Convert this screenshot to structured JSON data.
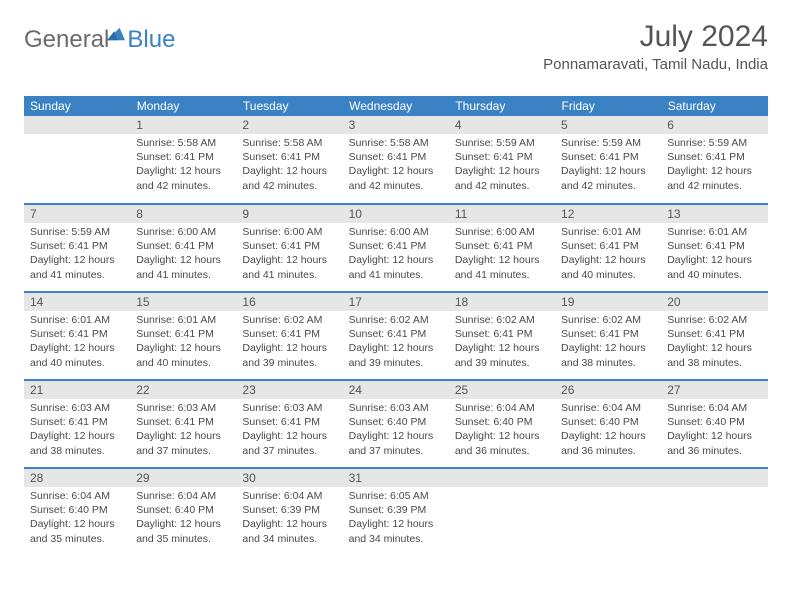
{
  "logo": {
    "text1": "General",
    "text2": "Blue"
  },
  "header": {
    "month_title": "July 2024",
    "location": "Ponnamaravati, Tamil Nadu, India"
  },
  "colors": {
    "header_bg": "#3b82c4",
    "header_fg": "#ffffff",
    "daynum_bg": "#e6e6e6",
    "row_border": "#3b82c4",
    "text": "#4a4a4a",
    "logo_gray": "#6b6b6b",
    "logo_blue": "#3b82c4"
  },
  "weekdays": [
    "Sunday",
    "Monday",
    "Tuesday",
    "Wednesday",
    "Thursday",
    "Friday",
    "Saturday"
  ],
  "labels": {
    "sunrise": "Sunrise:",
    "sunset": "Sunset:",
    "daylight": "Daylight:"
  },
  "first_day_index": 1,
  "days": [
    {
      "n": 1,
      "sunrise": "5:58 AM",
      "sunset": "6:41 PM",
      "daylight": "12 hours and 42 minutes."
    },
    {
      "n": 2,
      "sunrise": "5:58 AM",
      "sunset": "6:41 PM",
      "daylight": "12 hours and 42 minutes."
    },
    {
      "n": 3,
      "sunrise": "5:58 AM",
      "sunset": "6:41 PM",
      "daylight": "12 hours and 42 minutes."
    },
    {
      "n": 4,
      "sunrise": "5:59 AM",
      "sunset": "6:41 PM",
      "daylight": "12 hours and 42 minutes."
    },
    {
      "n": 5,
      "sunrise": "5:59 AM",
      "sunset": "6:41 PM",
      "daylight": "12 hours and 42 minutes."
    },
    {
      "n": 6,
      "sunrise": "5:59 AM",
      "sunset": "6:41 PM",
      "daylight": "12 hours and 42 minutes."
    },
    {
      "n": 7,
      "sunrise": "5:59 AM",
      "sunset": "6:41 PM",
      "daylight": "12 hours and 41 minutes."
    },
    {
      "n": 8,
      "sunrise": "6:00 AM",
      "sunset": "6:41 PM",
      "daylight": "12 hours and 41 minutes."
    },
    {
      "n": 9,
      "sunrise": "6:00 AM",
      "sunset": "6:41 PM",
      "daylight": "12 hours and 41 minutes."
    },
    {
      "n": 10,
      "sunrise": "6:00 AM",
      "sunset": "6:41 PM",
      "daylight": "12 hours and 41 minutes."
    },
    {
      "n": 11,
      "sunrise": "6:00 AM",
      "sunset": "6:41 PM",
      "daylight": "12 hours and 41 minutes."
    },
    {
      "n": 12,
      "sunrise": "6:01 AM",
      "sunset": "6:41 PM",
      "daylight": "12 hours and 40 minutes."
    },
    {
      "n": 13,
      "sunrise": "6:01 AM",
      "sunset": "6:41 PM",
      "daylight": "12 hours and 40 minutes."
    },
    {
      "n": 14,
      "sunrise": "6:01 AM",
      "sunset": "6:41 PM",
      "daylight": "12 hours and 40 minutes."
    },
    {
      "n": 15,
      "sunrise": "6:01 AM",
      "sunset": "6:41 PM",
      "daylight": "12 hours and 40 minutes."
    },
    {
      "n": 16,
      "sunrise": "6:02 AM",
      "sunset": "6:41 PM",
      "daylight": "12 hours and 39 minutes."
    },
    {
      "n": 17,
      "sunrise": "6:02 AM",
      "sunset": "6:41 PM",
      "daylight": "12 hours and 39 minutes."
    },
    {
      "n": 18,
      "sunrise": "6:02 AM",
      "sunset": "6:41 PM",
      "daylight": "12 hours and 39 minutes."
    },
    {
      "n": 19,
      "sunrise": "6:02 AM",
      "sunset": "6:41 PM",
      "daylight": "12 hours and 38 minutes."
    },
    {
      "n": 20,
      "sunrise": "6:02 AM",
      "sunset": "6:41 PM",
      "daylight": "12 hours and 38 minutes."
    },
    {
      "n": 21,
      "sunrise": "6:03 AM",
      "sunset": "6:41 PM",
      "daylight": "12 hours and 38 minutes."
    },
    {
      "n": 22,
      "sunrise": "6:03 AM",
      "sunset": "6:41 PM",
      "daylight": "12 hours and 37 minutes."
    },
    {
      "n": 23,
      "sunrise": "6:03 AM",
      "sunset": "6:41 PM",
      "daylight": "12 hours and 37 minutes."
    },
    {
      "n": 24,
      "sunrise": "6:03 AM",
      "sunset": "6:40 PM",
      "daylight": "12 hours and 37 minutes."
    },
    {
      "n": 25,
      "sunrise": "6:04 AM",
      "sunset": "6:40 PM",
      "daylight": "12 hours and 36 minutes."
    },
    {
      "n": 26,
      "sunrise": "6:04 AM",
      "sunset": "6:40 PM",
      "daylight": "12 hours and 36 minutes."
    },
    {
      "n": 27,
      "sunrise": "6:04 AM",
      "sunset": "6:40 PM",
      "daylight": "12 hours and 36 minutes."
    },
    {
      "n": 28,
      "sunrise": "6:04 AM",
      "sunset": "6:40 PM",
      "daylight": "12 hours and 35 minutes."
    },
    {
      "n": 29,
      "sunrise": "6:04 AM",
      "sunset": "6:40 PM",
      "daylight": "12 hours and 35 minutes."
    },
    {
      "n": 30,
      "sunrise": "6:04 AM",
      "sunset": "6:39 PM",
      "daylight": "12 hours and 34 minutes."
    },
    {
      "n": 31,
      "sunrise": "6:05 AM",
      "sunset": "6:39 PM",
      "daylight": "12 hours and 34 minutes."
    }
  ]
}
